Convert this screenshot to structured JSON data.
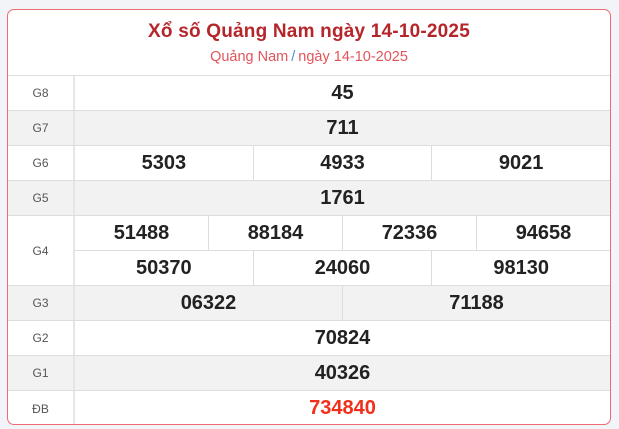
{
  "header": {
    "title": "Xổ số Quảng Nam ngày 14-10-2025",
    "breadcrumb_province": "Quảng Nam",
    "breadcrumb_separator": "/",
    "breadcrumb_date": "ngày 14-10-2025"
  },
  "prizes": [
    {
      "label": "G8",
      "lines": [
        [
          "45"
        ]
      ]
    },
    {
      "label": "G7",
      "lines": [
        [
          "711"
        ]
      ]
    },
    {
      "label": "G6",
      "lines": [
        [
          "5303",
          "4933",
          "9021"
        ]
      ]
    },
    {
      "label": "G5",
      "lines": [
        [
          "1761"
        ]
      ]
    },
    {
      "label": "G4",
      "lines": [
        [
          "51488",
          "88184",
          "72336",
          "94658"
        ],
        [
          "50370",
          "24060",
          "98130"
        ]
      ]
    },
    {
      "label": "G3",
      "lines": [
        [
          "06322",
          "71188"
        ]
      ]
    },
    {
      "label": "G2",
      "lines": [
        [
          "70824"
        ]
      ]
    },
    {
      "label": "G1",
      "lines": [
        [
          "40326"
        ]
      ]
    },
    {
      "label": "ĐB",
      "lines": [
        [
          "734840"
        ]
      ]
    }
  ],
  "colors": {
    "title": "#b5262b",
    "subtitle": "#e2545b",
    "special_prize": "#f0301a",
    "border": "#ef6a72"
  }
}
